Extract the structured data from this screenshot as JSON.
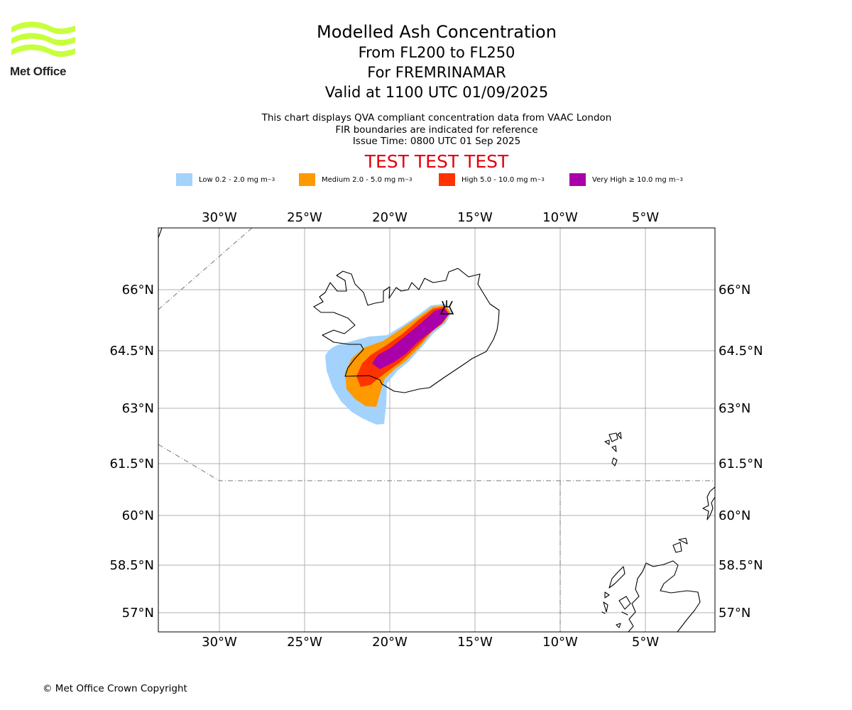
{
  "logo": {
    "name": "Met Office"
  },
  "header": {
    "title": "Modelled Ash Concentration",
    "levels": "From FL200 to FL250",
    "region": "For FREMRINAMAR",
    "valid": "Valid at 1100 UTC 01/09/2025"
  },
  "subtitle": {
    "line1": "This chart displays QVA compliant concentration data from VAAC London",
    "line2": "FIR boundaries are indicated for reference",
    "line3": "Issue Time: 0800 UTC 01 Sep 2025"
  },
  "banner": "TEST TEST TEST",
  "legend": {
    "items": [
      {
        "label": "Low 0.2 - 2.0 mg m",
        "unit_exp": "−3",
        "color": "#a3d3fc"
      },
      {
        "label": "Medium 2.0 - 5.0 mg m",
        "unit_exp": "−3",
        "color": "#ff9900"
      },
      {
        "label": "High 5.0 - 10.0 mg m",
        "unit_exp": "−3",
        "color": "#ff3300"
      },
      {
        "label": "Very High  ≥  10.0 mg m",
        "unit_exp": "−3",
        "color": "#aa00aa"
      }
    ]
  },
  "map": {
    "lon_ticks": [
      "30°W",
      "25°W",
      "20°W",
      "15°W",
      "10°W",
      "5°W"
    ],
    "lat_ticks": [
      "66°N",
      "64.5°N",
      "63°N",
      "61.5°N",
      "60°N",
      "58.5°N",
      "57°N"
    ],
    "volcano_icon": "volcano-icon"
  },
  "footer": {
    "copyright": "© Met Office Crown Copyright"
  }
}
